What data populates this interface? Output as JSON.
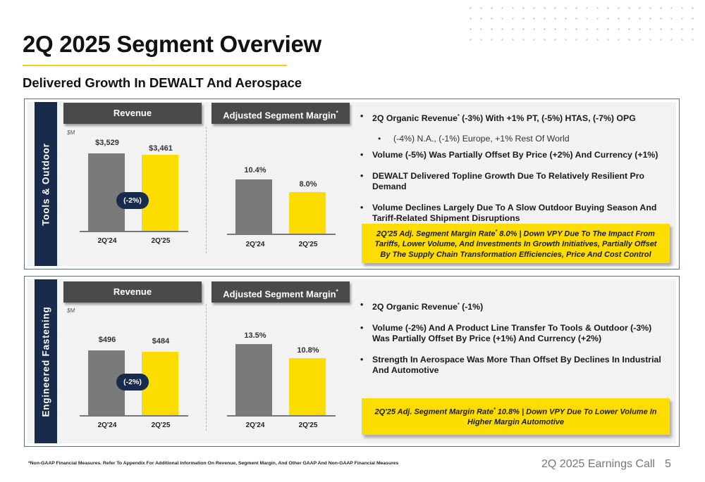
{
  "header": {
    "title": "2Q 2025 Segment Overview",
    "subtitle": "Delivered Growth In DEWALT And Aerospace"
  },
  "segments": [
    {
      "name": "Tools & Outdoor",
      "revenue": {
        "header": "Revenue",
        "unit": "$M",
        "change_label": "(-2%)",
        "bars": [
          {
            "label": "2Q'24",
            "value": 3529,
            "value_label": "$3,529",
            "color": "#7a7a7a"
          },
          {
            "label": "2Q'25",
            "value": 3461,
            "value_label": "$3,461",
            "color": "#fddc00"
          }
        ]
      },
      "margin": {
        "header": "Adjusted Segment Margin",
        "header_mark": "*",
        "bars": [
          {
            "label": "2Q'24",
            "value": 10.4,
            "value_label": "10.4%",
            "color": "#7a7a7a"
          },
          {
            "label": "2Q'25",
            "value": 8.0,
            "value_label": "8.0%",
            "color": "#fddc00"
          }
        ]
      },
      "bullets": [
        {
          "pre": "2Q Organic Revenue",
          "mark": "*",
          "post": " (-3%) With +1% PT, (-5%) HTAS, (-7%) OPG",
          "sub": false
        },
        {
          "pre": "(-4%) N.A., (-1%) Europe, +1% Rest Of World",
          "mark": "",
          "post": "",
          "sub": true
        },
        {
          "pre": "Volume (-5%) Was Partially Offset By Price (+2%) And Currency (+1%)",
          "mark": "",
          "post": "",
          "sub": false
        },
        {
          "pre": "DEWALT Delivered Topline Growth Due To Relatively Resilient Pro Demand",
          "mark": "",
          "post": "",
          "sub": false
        },
        {
          "pre": "Volume Declines Largely Due To A Slow Outdoor Buying Season And Tariff-Related Shipment Disruptions",
          "mark": "",
          "post": "",
          "sub": false
        }
      ],
      "callout": {
        "pre": "2Q'25 Adj. Segment Margin Rate",
        "mark": "*",
        "post": " 8.0% | Down VPY Due To The Impact From Tariffs, Lower Volume, And Investments In Growth Initiatives, Partially Offset By The Supply Chain Transformation Efficiencies, Price And Cost Control"
      }
    },
    {
      "name": "Engineered Fastening",
      "revenue": {
        "header": "Revenue",
        "unit": "$M",
        "change_label": "(-2%)",
        "bars": [
          {
            "label": "2Q'24",
            "value": 496,
            "value_label": "$496",
            "color": "#7a7a7a"
          },
          {
            "label": "2Q'25",
            "value": 484,
            "value_label": "$484",
            "color": "#fddc00"
          }
        ]
      },
      "margin": {
        "header": "Adjusted Segment Margin",
        "header_mark": "*",
        "bars": [
          {
            "label": "2Q'24",
            "value": 13.5,
            "value_label": "13.5%",
            "color": "#7a7a7a"
          },
          {
            "label": "2Q'25",
            "value": 10.8,
            "value_label": "10.8%",
            "color": "#fddc00"
          }
        ]
      },
      "bullets": [
        {
          "pre": "2Q Organic Revenue",
          "mark": "*",
          "post": " (-1%)",
          "sub": false
        },
        {
          "pre": "Volume (-2%) And A Product Line Transfer To Tools & Outdoor (-3%) Was Partially Offset By Price (+1%) And Currency (+2%)",
          "mark": "",
          "post": "",
          "sub": false
        },
        {
          "pre": "Strength In Aerospace Was More Than Offset By Declines In Industrial And Automotive",
          "mark": "",
          "post": "",
          "sub": false
        }
      ],
      "callout": {
        "pre": "2Q'25 Adj. Segment Margin Rate",
        "mark": "*",
        "post": " 10.8% | Down VPY Due To Lower Volume In Higher Margin Automotive"
      }
    }
  ],
  "footer": {
    "footnote": "*Non-GAAP Financial Measures. Refer To Appendix For Additional Information On Revenue, Segment Margin, And Other GAAP And Non-GAAP Financial Measures",
    "event": "2Q 2025 Earnings Call",
    "page": "5"
  }
}
